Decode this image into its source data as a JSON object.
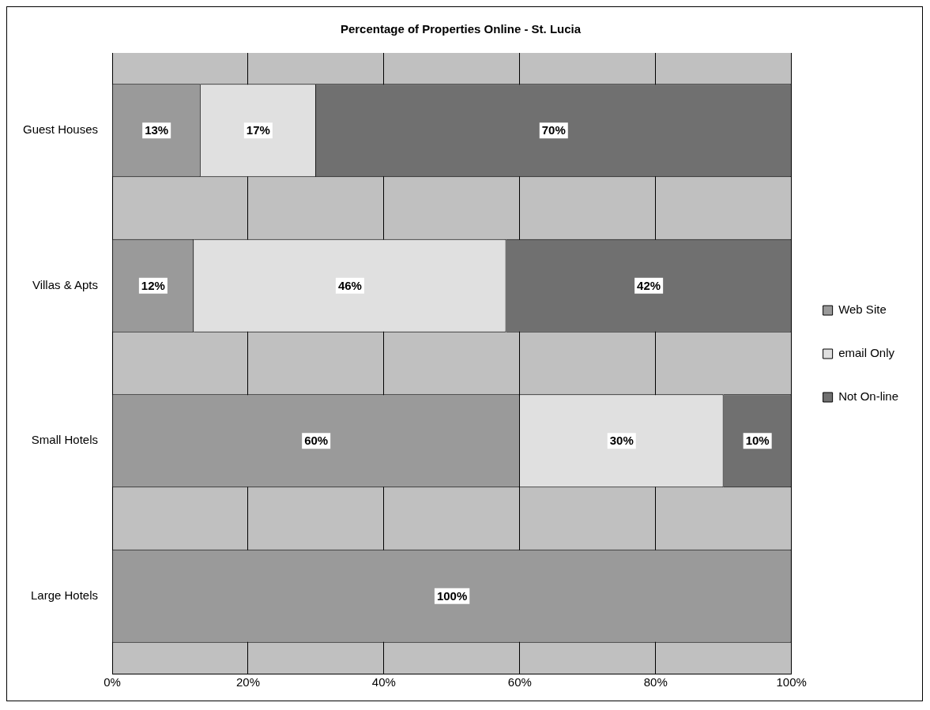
{
  "chart_data": {
    "type": "bar",
    "orientation": "horizontal",
    "stacked": true,
    "title": "Percentage of Properties Online - St. Lucia",
    "categories": [
      "Guest Houses",
      "Villas & Apts",
      "Small Hotels",
      "Large Hotels"
    ],
    "series": [
      {
        "name": "Web Site",
        "color": "#9a9a9a",
        "values": [
          13,
          12,
          60,
          100
        ],
        "value_labels": [
          "13%",
          "12%",
          "60%",
          "100%"
        ]
      },
      {
        "name": "email Only",
        "color": "#e0e0e0",
        "values": [
          17,
          46,
          30,
          null
        ],
        "value_labels": [
          "17%",
          "46%",
          "30%",
          null
        ]
      },
      {
        "name": "Not On-line",
        "color": "#707070",
        "values": [
          70,
          42,
          10,
          null
        ],
        "value_labels": [
          "70%",
          "42%",
          "10%",
          null
        ]
      }
    ],
    "xlim": [
      0,
      100
    ],
    "xticks": [
      {
        "value": 0,
        "label": "0%"
      },
      {
        "value": 20,
        "label": "20%"
      },
      {
        "value": 40,
        "label": "40%"
      },
      {
        "value": 60,
        "label": "60%"
      },
      {
        "value": 80,
        "label": "80%"
      },
      {
        "value": 100,
        "label": "100%"
      }
    ],
    "grid": "x",
    "legend": "right"
  }
}
